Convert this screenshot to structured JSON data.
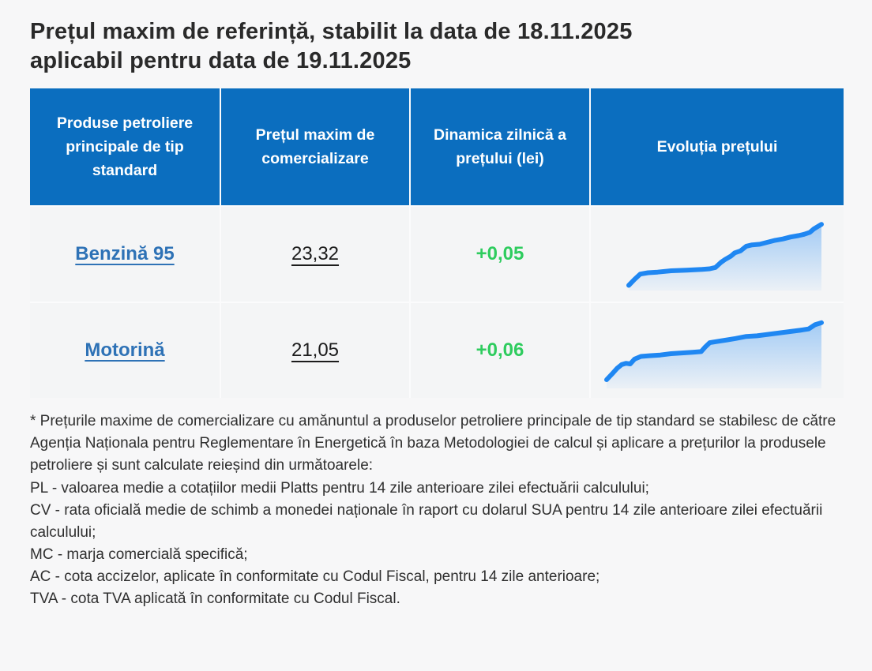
{
  "page": {
    "background": "#f7f7f8",
    "title_lines": [
      "Prețul maxim de referință, stabilit la data de 18.11.2025",
      "aplicabil pentru data de 19.11.2025"
    ]
  },
  "table": {
    "header_bg": "#0b6ebf",
    "link_color": "#2e72b6",
    "change_color": "#2ecc5e",
    "headers": [
      "Produse petroliere principale de tip standard",
      "Prețul maxim de comercializare",
      "Dinamica zilnică a prețului (lei)",
      "Evoluția prețului"
    ],
    "rows": [
      {
        "product": "Benzină 95",
        "price": "23,32",
        "change": "+0,05"
      },
      {
        "product": "Motorină",
        "price": "21,05",
        "change": "+0,06"
      }
    ]
  },
  "footnotes": [
    "* Prețurile maxime de comercializare cu amănuntul a produselor petroliere principale de tip standard se stabilesc de către Agenția Naționala pentru Reglementare în Energetică în baza Metodologiei de calcul și aplicare a prețurilor la produsele petroliere și sunt calculate reieșind din următoarele:",
    "PL - valoarea medie a cotațiilor medii Platts pentru 14 zile anterioare zilei efectuării calculului;",
    "CV - rata oficială medie de schimb a monedei naționale în raport cu dolarul SUA pentru 14 zile anterioare zilei efectuării calculului;",
    "MC - marja comercială specifică;",
    "AC - cota accizelor, aplicate în conformitate cu Codul Fiscal, pentru 14 zile anterioare;",
    "TVA - cota TVA aplicată în conformitate cu Codul Fiscal."
  ],
  "chart_data": [
    {
      "type": "area",
      "name": "benzina-95-price-evolution-sparkline",
      "title": "Evoluția prețului - Benzină 95",
      "line_color": "#1f87f2",
      "x_range": [
        0,
        100
      ],
      "y_range": [
        0,
        100
      ],
      "points": [
        [
          0,
          3
        ],
        [
          3,
          12
        ],
        [
          6,
          20
        ],
        [
          10,
          22
        ],
        [
          15,
          23
        ],
        [
          22,
          25
        ],
        [
          30,
          26
        ],
        [
          38,
          27
        ],
        [
          42,
          28
        ],
        [
          45,
          30
        ],
        [
          48,
          38
        ],
        [
          50,
          42
        ],
        [
          53,
          47
        ],
        [
          55,
          52
        ],
        [
          58,
          55
        ],
        [
          61,
          62
        ],
        [
          64,
          64
        ],
        [
          68,
          65
        ],
        [
          72,
          68
        ],
        [
          76,
          71
        ],
        [
          80,
          73
        ],
        [
          84,
          76
        ],
        [
          88,
          78
        ],
        [
          91,
          80
        ],
        [
          94,
          83
        ],
        [
          96,
          88
        ],
        [
          100,
          95
        ]
      ]
    },
    {
      "type": "area",
      "name": "motorina-price-evolution-sparkline",
      "title": "Evoluția prețului - Motorină",
      "line_color": "#1f87f2",
      "x_range": [
        0,
        100
      ],
      "y_range": [
        0,
        100
      ],
      "points": [
        [
          0,
          8
        ],
        [
          3,
          18
        ],
        [
          5,
          25
        ],
        [
          7,
          30
        ],
        [
          9,
          32
        ],
        [
          11,
          31
        ],
        [
          13,
          38
        ],
        [
          16,
          42
        ],
        [
          20,
          43
        ],
        [
          25,
          44
        ],
        [
          30,
          46
        ],
        [
          35,
          47
        ],
        [
          40,
          48
        ],
        [
          44,
          49
        ],
        [
          46,
          56
        ],
        [
          48,
          62
        ],
        [
          52,
          64
        ],
        [
          56,
          66
        ],
        [
          60,
          68
        ],
        [
          65,
          71
        ],
        [
          70,
          72
        ],
        [
          75,
          74
        ],
        [
          80,
          76
        ],
        [
          85,
          78
        ],
        [
          90,
          80
        ],
        [
          94,
          82
        ],
        [
          97,
          88
        ],
        [
          100,
          91
        ]
      ]
    }
  ]
}
